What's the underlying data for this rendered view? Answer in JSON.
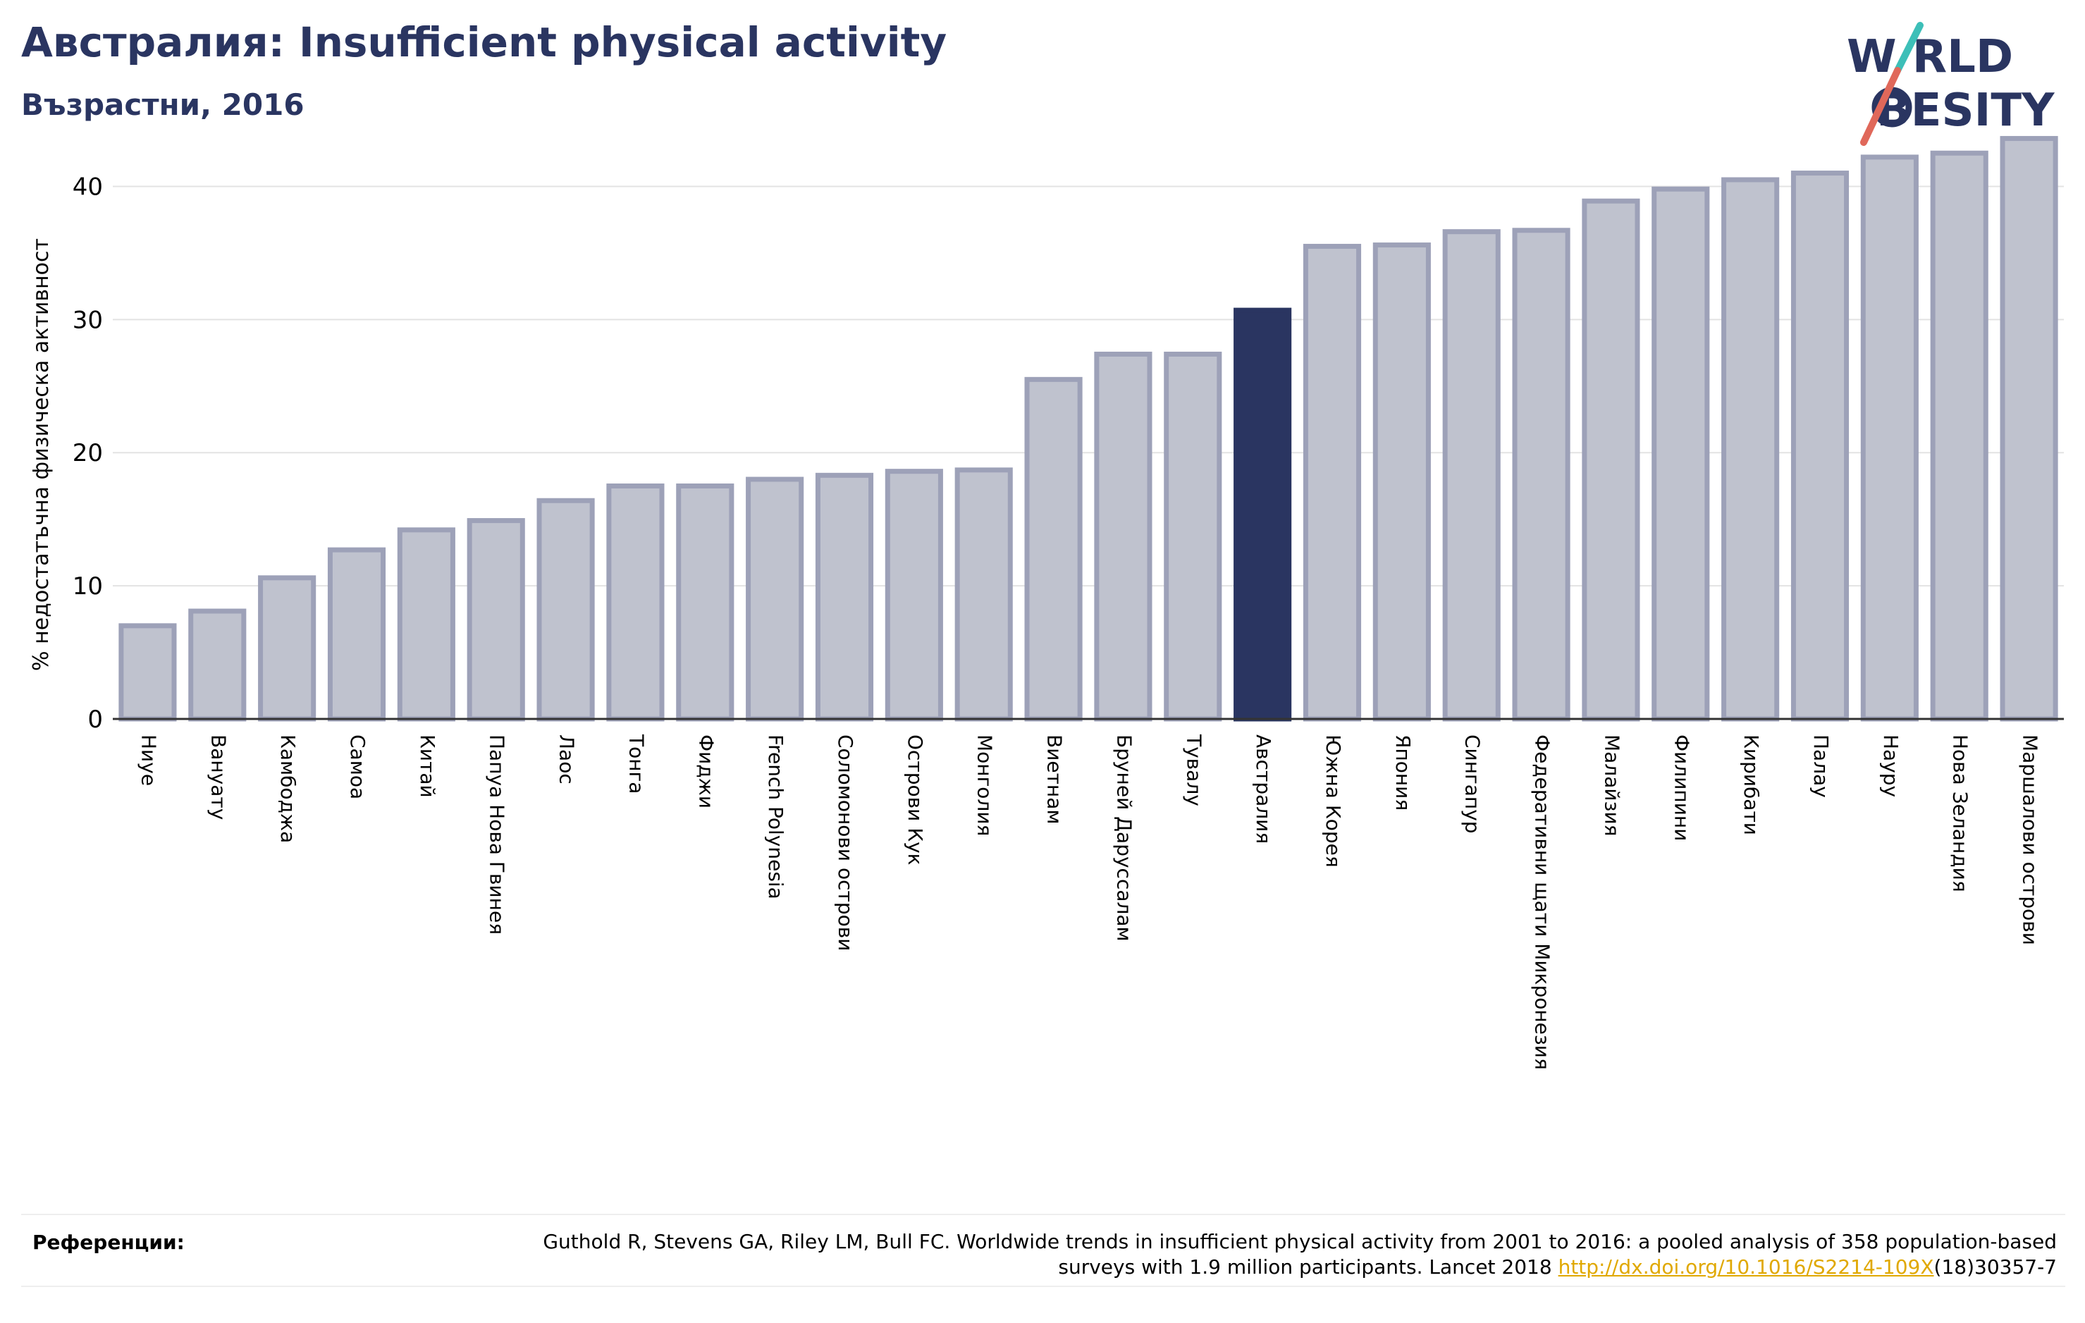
{
  "header": {
    "title": "Австралия: Insufficient physical activity",
    "subtitle": "Възрастни, 2016"
  },
  "logo": {
    "line1": "W RLD",
    "line2": "BESITY",
    "colors": {
      "text": "#2a3561",
      "slash_teal": "#3dbfb8",
      "slash_red": "#e0685a"
    }
  },
  "chart_data": {
    "type": "bar",
    "ylabel": "% недостатъчна физическа активност",
    "ylim": [
      0,
      45
    ],
    "yticks": [
      0,
      10,
      20,
      30,
      40
    ],
    "grid": true,
    "highlight": "Австралия",
    "colors": {
      "bar": "#bfc2ce",
      "bar_border": "#9da1b8",
      "highlight": "#2a3561"
    },
    "categories": [
      "Ниуе",
      "Вануату",
      "Камбоджа",
      "Самоа",
      "Китай",
      "Папуа Нова Гвинея",
      "Лаос",
      "Тонга",
      "Фиджи",
      "French Polynesia",
      "Соломонови острови",
      "Острови Кук",
      "Монголия",
      "Виетнам",
      "Бруней Даруссалам",
      "Тувалу",
      "Австралия",
      "Южна Корея",
      "Япония",
      "Сингапур",
      "Федеративни щати Микронезия",
      "Малайзия",
      "Филипини",
      "Кирибати",
      "Палау",
      "Науру",
      "Нова Зеландия",
      "Маршалови острови"
    ],
    "values": [
      7.0,
      8.1,
      10.6,
      12.7,
      14.2,
      14.9,
      16.4,
      17.5,
      17.5,
      18.0,
      18.3,
      18.6,
      18.7,
      25.5,
      27.4,
      27.4,
      30.7,
      35.5,
      35.6,
      36.6,
      36.7,
      38.9,
      39.8,
      40.5,
      41.0,
      42.2,
      42.5,
      43.6
    ]
  },
  "footer": {
    "label": "Референции:",
    "text_before": "Guthold R, Stevens GA, Riley LM, Bull FC. Worldwide trends in insufficient physical activity from 2001 to 2016: a pooled analysis of 358 population-based surveys with 1.9 million participants. Lancet 2018 ",
    "link": "http://dx.doi.org/10.1016/S2214-109X",
    "text_after": "(18)30357-7"
  }
}
